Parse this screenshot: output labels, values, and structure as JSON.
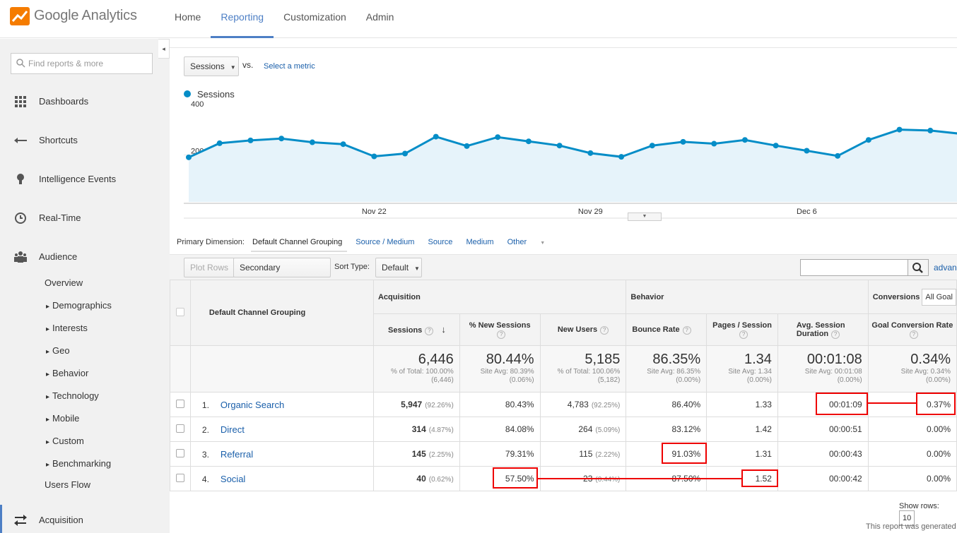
{
  "app": {
    "logo_text": "Google Analytics"
  },
  "topnav": [
    "Home",
    "Reporting",
    "Customization",
    "Admin"
  ],
  "sidebar": {
    "search_placeholder": "Find reports & more",
    "sections": [
      "Dashboards",
      "Shortcuts",
      "Intelligence Events",
      "Real-Time",
      "Audience",
      "Acquisition"
    ],
    "audience_items": [
      "Overview",
      "Demographics",
      "Interests",
      "Geo",
      "Behavior",
      "Technology",
      "Mobile",
      "Custom",
      "Benchmarking",
      "Users Flow"
    ]
  },
  "graph": {
    "metric_select": "Sessions",
    "vs": "vs.",
    "select_metric": "Select a metric",
    "legend": "Sessions",
    "color": "#058dc7"
  },
  "chart_data": {
    "type": "area",
    "series": [
      {
        "name": "Sessions",
        "values": [
          190,
          250,
          262,
          270,
          254,
          246,
          194,
          206,
          278,
          238,
          276,
          258,
          240,
          208,
          192,
          240,
          256,
          248,
          264,
          240,
          218,
          196,
          264,
          308,
          304,
          290
        ]
      }
    ],
    "x_tick_labels": [
      "Nov 22",
      "Nov 29",
      "Dec 6"
    ],
    "y_tick_labels": [
      "400",
      "200"
    ],
    "ylim": [
      0,
      400
    ]
  },
  "dimensions": {
    "label": "Primary Dimension:",
    "current": "Default Channel Grouping",
    "others": [
      "Source / Medium",
      "Source",
      "Medium",
      "Other"
    ]
  },
  "toolbar": {
    "plot_rows": "Plot Rows",
    "secondary": "Secondary dimension",
    "sort_type_label": "Sort Type:",
    "sort_value": "Default",
    "advanced": "advan"
  },
  "table": {
    "dim_header": "Default Channel Grouping",
    "groups": [
      "Acquisition",
      "Behavior",
      "Conversions"
    ],
    "goal_select": "All Goal",
    "columns": [
      "Sessions",
      "% New Sessions",
      "New Users",
      "Bounce Rate",
      "Pages / Session",
      "Avg. Session Duration",
      "Goal Conversion Rate"
    ],
    "totals": [
      {
        "value": "6,446",
        "sub1": "% of Total: 100.00%",
        "sub2": "(6,446)"
      },
      {
        "value": "80.44%",
        "sub1": "Site Avg: 80.39%",
        "sub2": "(0.06%)"
      },
      {
        "value": "5,185",
        "sub1": "% of Total: 100.06%",
        "sub2": "(5,182)"
      },
      {
        "value": "86.35%",
        "sub1": "Site Avg: 86.35%",
        "sub2": "(0.00%)"
      },
      {
        "value": "1.34",
        "sub1": "Site Avg: 1.34",
        "sub2": "(0.00%)"
      },
      {
        "value": "00:01:08",
        "sub1": "Site Avg: 00:01:08",
        "sub2": "(0.00%)"
      },
      {
        "value": "0.34%",
        "sub1": "Site Avg: 0.34%",
        "sub2": "(0.00%)"
      }
    ],
    "rows": [
      {
        "num": "1.",
        "name": "Organic Search",
        "sessions": "5,947",
        "sessions_pct": "(92.26%)",
        "new_sessions": "80.43%",
        "new_users": "4,783",
        "new_users_pct": "(92.25%)",
        "bounce": "86.40%",
        "pages": "1.33",
        "duration": "00:01:09",
        "conv": "0.37%"
      },
      {
        "num": "2.",
        "name": "Direct",
        "sessions": "314",
        "sessions_pct": "(4.87%)",
        "new_sessions": "84.08%",
        "new_users": "264",
        "new_users_pct": "(5.09%)",
        "bounce": "83.12%",
        "pages": "1.42",
        "duration": "00:00:51",
        "conv": "0.00%"
      },
      {
        "num": "3.",
        "name": "Referral",
        "sessions": "145",
        "sessions_pct": "(2.25%)",
        "new_sessions": "79.31%",
        "new_users": "115",
        "new_users_pct": "(2.22%)",
        "bounce": "91.03%",
        "pages": "1.31",
        "duration": "00:00:43",
        "conv": "0.00%"
      },
      {
        "num": "4.",
        "name": "Social",
        "sessions": "40",
        "sessions_pct": "(0.62%)",
        "new_sessions": "57.50%",
        "new_users": "23",
        "new_users_pct": "(0.44%)",
        "bounce": "87.50%",
        "pages": "1.52",
        "duration": "00:00:42",
        "conv": "0.00%"
      }
    ]
  },
  "footer": {
    "show_rows": "Show rows:",
    "show_rows_value": "10",
    "generated": "This report was generated"
  }
}
